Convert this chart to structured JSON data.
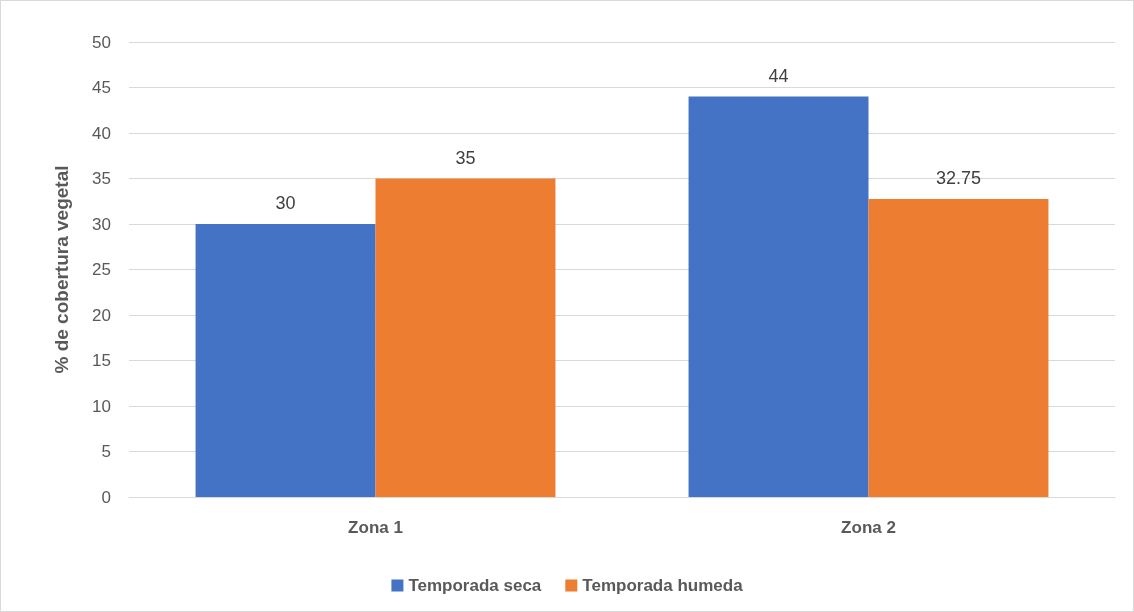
{
  "chart_data": {
    "type": "bar",
    "ylabel": "% de cobertura vegetal",
    "categories": [
      "Zona 1",
      "Zona 2"
    ],
    "series": [
      {
        "name": "Temporada seca",
        "color": "#4472c4",
        "values": [
          30,
          44
        ]
      },
      {
        "name": "Temporada humeda",
        "color": "#ed7d31",
        "values": [
          35,
          32.75
        ]
      }
    ],
    "ylim": [
      0,
      50
    ],
    "yticks": [
      0,
      5,
      10,
      15,
      20,
      25,
      30,
      35,
      40,
      45,
      50
    ],
    "grid": "y",
    "legend": "bottom",
    "data_labels": true
  }
}
